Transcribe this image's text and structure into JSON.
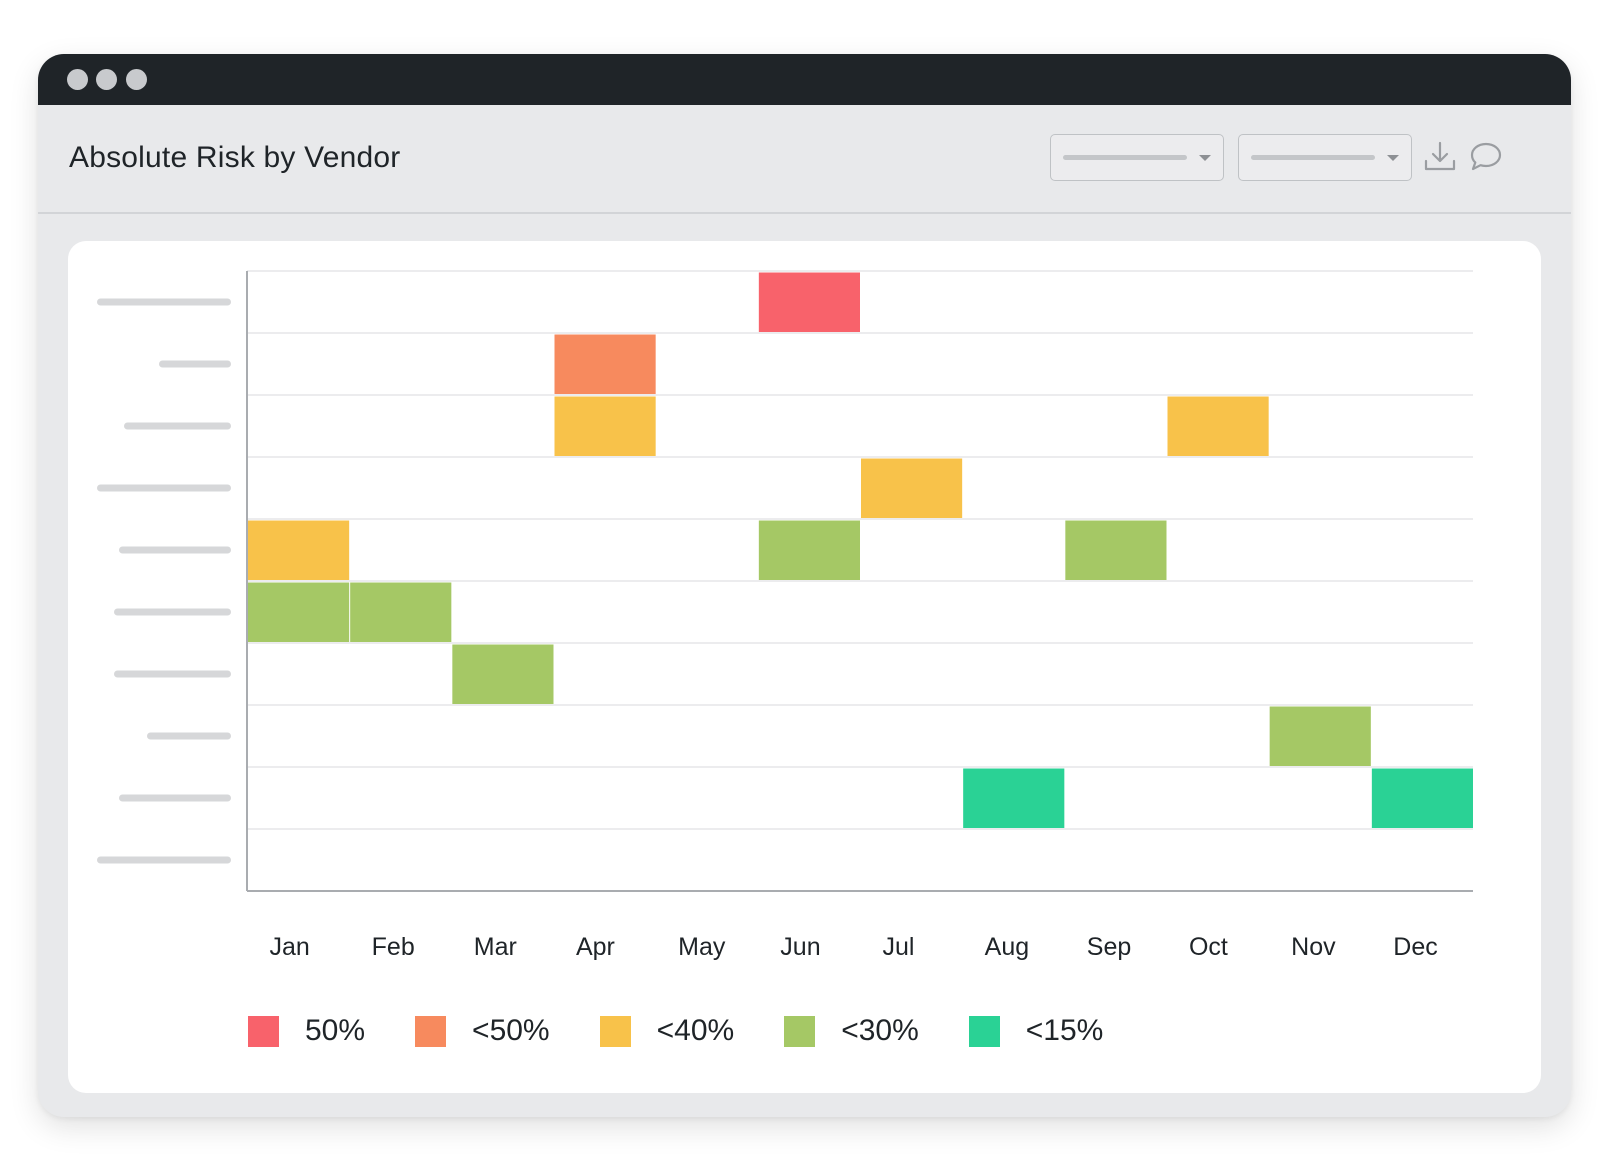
{
  "window": {
    "title": "Absolute Risk by Vendor",
    "dots": [
      "#c8cacd",
      "#c8cacd",
      "#c8cacd"
    ]
  },
  "toolbar": {
    "icons": [
      "chevron-down-icon",
      "chevron-down-icon",
      "download-icon",
      "comment-icon"
    ]
  },
  "chart_data": {
    "type": "heatmap",
    "title": "Absolute Risk by Vendor",
    "x": [
      "Jan",
      "Feb",
      "Mar",
      "Apr",
      "May",
      "Jun",
      "Jul",
      "Aug",
      "Sep",
      "Oct",
      "Nov",
      "Dec"
    ],
    "rows": 10,
    "grid": true,
    "legend_position": "bottom-left",
    "legend": [
      {
        "label": "50%",
        "color": "#f8626b"
      },
      {
        "label": "<50%",
        "color": "#f78a5e"
      },
      {
        "label": "<40%",
        "color": "#f8c24a"
      },
      {
        "label": "<30%",
        "color": "#a5c865"
      },
      {
        "label": "<15%",
        "color": "#2ad295"
      }
    ],
    "cells": [
      {
        "row": 1,
        "col": 6,
        "level": 0
      },
      {
        "row": 2,
        "col": 4,
        "level": 1
      },
      {
        "row": 3,
        "col": 4,
        "level": 2
      },
      {
        "row": 3,
        "col": 10,
        "level": 2
      },
      {
        "row": 4,
        "col": 7,
        "level": 2
      },
      {
        "row": 5,
        "col": 1,
        "level": 2
      },
      {
        "row": 5,
        "col": 6,
        "level": 3
      },
      {
        "row": 5,
        "col": 9,
        "level": 3
      },
      {
        "row": 6,
        "col": 1,
        "level": 3
      },
      {
        "row": 6,
        "col": 2,
        "level": 3
      },
      {
        "row": 7,
        "col": 3,
        "level": 3
      },
      {
        "row": 8,
        "col": 11,
        "level": 3
      },
      {
        "row": 9,
        "col": 8,
        "level": 4
      },
      {
        "row": 9,
        "col": 12,
        "level": 4
      }
    ]
  }
}
